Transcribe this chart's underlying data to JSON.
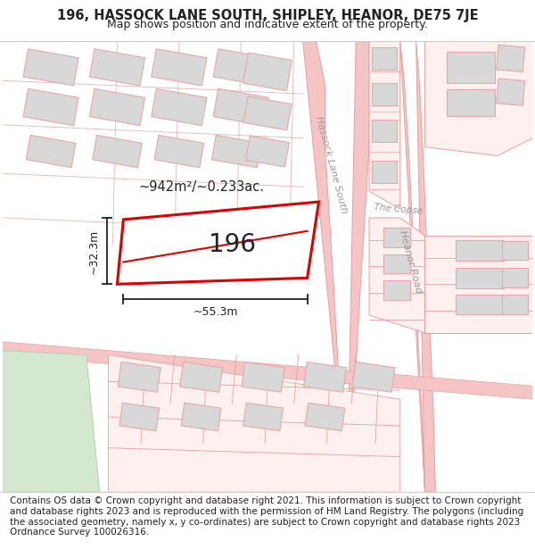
{
  "title_line1": "196, HASSOCK LANE SOUTH, SHIPLEY, HEANOR, DE75 7JE",
  "title_line2": "Map shows position and indicative extent of the property.",
  "footer_text": "Contains OS data © Crown copyright and database right 2021. This information is subject to Crown copyright and database rights 2023 and is reproduced with the permission of HM Land Registry. The polygons (including the associated geometry, namely x, y co-ordinates) are subject to Crown copyright and database rights 2023 Ordnance Survey 100026316.",
  "background_color": "#ffffff",
  "road_color": "#f5c5c5",
  "road_edge_color": "#e8a0a0",
  "building_fill": "#d8d8d8",
  "building_edge": "#e8a8a8",
  "plot_color": "#dd0000",
  "green_fill": "#d4e8d0",
  "green_edge": "#b8d4b4",
  "label_196": "196",
  "area_label": "~942m²/~0.233ac.",
  "dim_width": "~55.3m",
  "dim_height": "~32.3m",
  "road_label_hls": "Hassock Lane South",
  "road_label_hr": "Heanor Road",
  "road_label_tc": "The Copse",
  "title_fontsize": 10.5,
  "subtitle_fontsize": 9,
  "footer_fontsize": 7.5,
  "label_color": "#999999",
  "dim_color": "#222222",
  "text_color": "#222222"
}
